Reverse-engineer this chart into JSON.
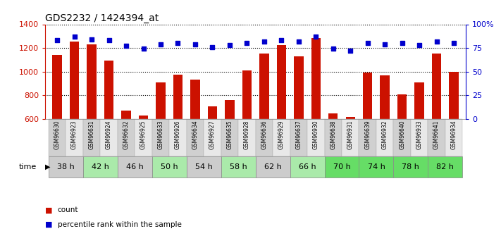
{
  "title": "GDS2232 / 1424394_at",
  "samples": [
    "GSM96630",
    "GSM96923",
    "GSM96631",
    "GSM96924",
    "GSM96632",
    "GSM96925",
    "GSM96633",
    "GSM96926",
    "GSM96634",
    "GSM96927",
    "GSM96635",
    "GSM96928",
    "GSM96636",
    "GSM96929",
    "GSM96637",
    "GSM96930",
    "GSM96638",
    "GSM96931",
    "GSM96639",
    "GSM96932",
    "GSM96640",
    "GSM96933",
    "GSM96641",
    "GSM96934"
  ],
  "counts": [
    1140,
    1255,
    1230,
    1090,
    668,
    625,
    910,
    975,
    930,
    705,
    760,
    1010,
    1150,
    1225,
    1130,
    1285,
    648,
    615,
    990,
    970,
    805,
    910,
    1155,
    1000
  ],
  "percentile_ranks": [
    83,
    87,
    84,
    83,
    77,
    74,
    79,
    80,
    79,
    76,
    78,
    80,
    82,
    83,
    82,
    87,
    74,
    72,
    80,
    79,
    80,
    78,
    82,
    80
  ],
  "time_groups": [
    {
      "label": "38 h",
      "start": 0,
      "end": 2,
      "color": "#cccccc"
    },
    {
      "label": "42 h",
      "start": 2,
      "end": 4,
      "color": "#aaeaaa"
    },
    {
      "label": "46 h",
      "start": 4,
      "end": 6,
      "color": "#cccccc"
    },
    {
      "label": "50 h",
      "start": 6,
      "end": 8,
      "color": "#aaeaaa"
    },
    {
      "label": "54 h",
      "start": 8,
      "end": 10,
      "color": "#cccccc"
    },
    {
      "label": "58 h",
      "start": 10,
      "end": 12,
      "color": "#aaeaaa"
    },
    {
      "label": "62 h",
      "start": 12,
      "end": 14,
      "color": "#cccccc"
    },
    {
      "label": "66 h",
      "start": 14,
      "end": 16,
      "color": "#aaeaaa"
    },
    {
      "label": "70 h",
      "start": 16,
      "end": 18,
      "color": "#66dd66"
    },
    {
      "label": "74 h",
      "start": 18,
      "end": 20,
      "color": "#66dd66"
    },
    {
      "label": "78 h",
      "start": 20,
      "end": 22,
      "color": "#66dd66"
    },
    {
      "label": "82 h",
      "start": 22,
      "end": 24,
      "color": "#66dd66"
    }
  ],
  "ylim_left": [
    600,
    1400
  ],
  "ylim_right": [
    0,
    100
  ],
  "yticks_left": [
    600,
    800,
    1000,
    1200,
    1400
  ],
  "yticks_right": [
    0,
    25,
    50,
    75,
    100
  ],
  "ytick_right_labels": [
    "0",
    "25",
    "50",
    "75",
    "100%"
  ],
  "bar_color": "#cc1100",
  "dot_color": "#0000cc",
  "bar_width": 0.55,
  "sample_box_odd": "#d0d0d0",
  "sample_box_even": "#e8e8e8"
}
